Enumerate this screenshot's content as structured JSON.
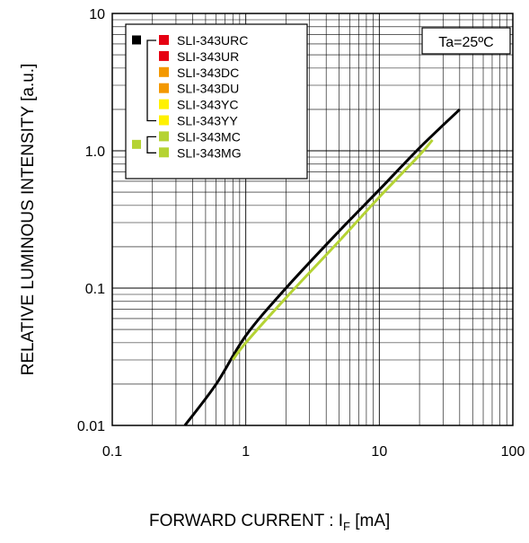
{
  "chart_data": {
    "type": "line",
    "xscale": "log",
    "yscale": "log",
    "xlim": [
      0.1,
      100
    ],
    "ylim": [
      0.01,
      10
    ],
    "x_ticks": [
      "0.1",
      "1",
      "10",
      "100"
    ],
    "y_ticks": [
      "0.01",
      "0.1",
      "1.0",
      "10"
    ],
    "ylabel": "RELATIVE LUMINOUS INTENSITY [a.u.]",
    "xlabel_main": "FORWARD CURRENT : I",
    "xlabel_sub": "F",
    "xlabel_unit": " [mA]",
    "annotation": "Ta=25ºC",
    "grid": true,
    "legend_position": "top-left",
    "legend": [
      {
        "label": "SLI-343URC",
        "color": "#e60012"
      },
      {
        "label": "SLI-343UR",
        "color": "#e60012"
      },
      {
        "label": "SLI-343DC",
        "color": "#f39800"
      },
      {
        "label": "SLI-343DU",
        "color": "#f39800"
      },
      {
        "label": "SLI-343YC",
        "color": "#fff100"
      },
      {
        "label": "SLI-343YY",
        "color": "#fff100"
      },
      {
        "label": "SLI-343MC",
        "color": "#b5d334"
      },
      {
        "label": "SLI-343MG",
        "color": "#b5d334"
      }
    ],
    "legend_groups": [
      {
        "color": "#000000",
        "members": [
          0,
          5
        ]
      },
      {
        "color": "#b5d334",
        "members": [
          6,
          7
        ]
      }
    ],
    "series": [
      {
        "color": "#000000",
        "x": [
          0.35,
          0.6,
          1,
          2,
          5,
          10,
          20,
          40
        ],
        "y": [
          0.01,
          0.02,
          0.045,
          0.1,
          0.26,
          0.52,
          1.05,
          2.0
        ]
      },
      {
        "color": "#b5d334",
        "x": [
          0.8,
          1,
          2,
          5,
          10,
          20,
          25
        ],
        "y": [
          0.03,
          0.04,
          0.085,
          0.22,
          0.46,
          0.93,
          1.2
        ]
      }
    ]
  }
}
